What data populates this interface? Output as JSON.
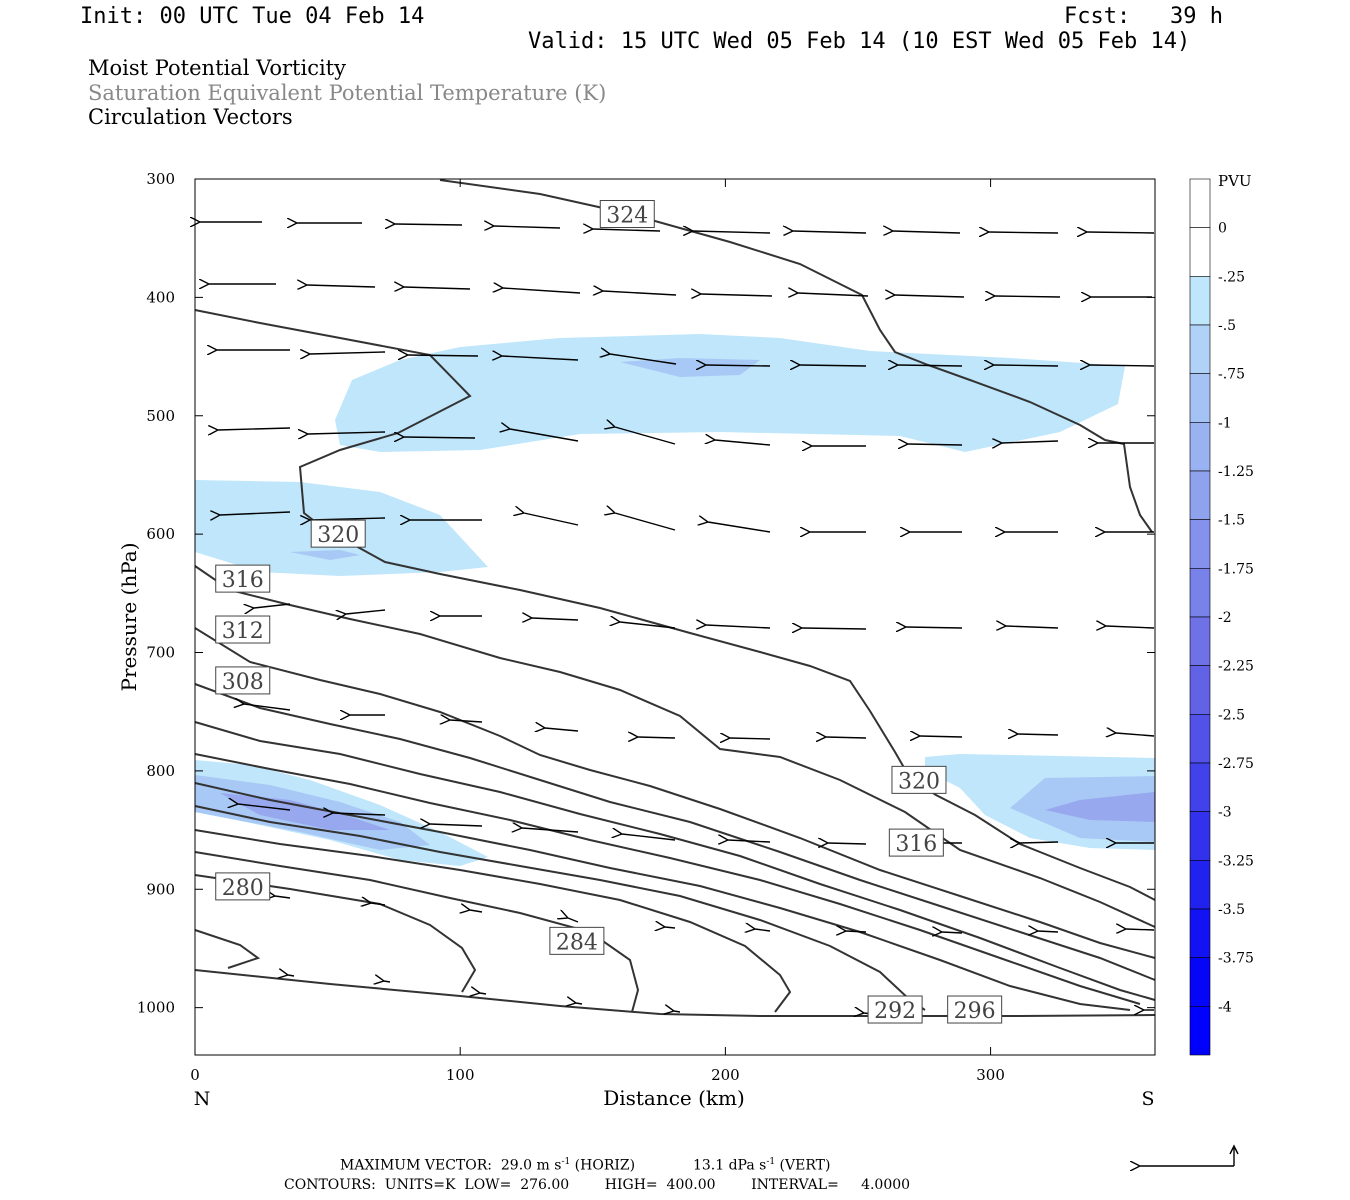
{
  "header": {
    "init": "Init: 00 UTC Tue 04 Feb 14",
    "fcst": "Fcst:   39 h",
    "valid": "Valid: 15 UTC Wed 05 Feb 14 (10 EST Wed 05 Feb 14)"
  },
  "fields": {
    "line1": "Moist Potential Vorticity",
    "line2": "Saturation Equivalent Potential Temperature (K)",
    "line3": "Circulation Vectors"
  },
  "colors": {
    "mpv_light": "#bfe6fb",
    "mpv_mid": "#a8c8f5",
    "mpv_dark": "#98a8ee",
    "contour": "#333333",
    "axis": "#000000"
  },
  "footer": {
    "max_vector_label": "MAXIMUM VECTOR:",
    "horiz_value": "29.0 m s",
    "horiz_exp": "-1",
    "horiz_label": "(HORIZ)",
    "vert_value": "13.1 dPa s",
    "vert_exp": "-1",
    "vert_label": "(VERT)",
    "contours": "CONTOURS:  UNITS=K  LOW=  276.00        HIGH=  400.00        INTERVAL=     4.0000"
  },
  "chart_data": {
    "type": "contour",
    "xlabel": "Distance (km)",
    "ylabel": "Pressure (hPa)",
    "xlim": [
      0,
      362
    ],
    "ylim": [
      1040,
      300
    ],
    "x_ticks": [
      0,
      100,
      200,
      300
    ],
    "y_ticks": [
      300,
      400,
      500,
      600,
      700,
      800,
      900,
      1000
    ],
    "x_end_labels": {
      "left": "N",
      "right": "S"
    },
    "colorbar": {
      "title": "PVU",
      "labels": [
        "0",
        "-.25",
        "-.5",
        "-.75",
        "-1",
        "-1.25",
        "-1.5",
        "-1.75",
        "-2",
        "-2.25",
        "-2.5",
        "-2.75",
        "-3",
        "-3.25",
        "-3.5",
        "-3.75",
        "-4"
      ],
      "colors": [
        "#ffffff",
        "#ffffff",
        "#bfe6fb",
        "#b0d2f7",
        "#a5c2f4",
        "#9ab2f1",
        "#8fa2ee",
        "#8492eb",
        "#7982e8",
        "#6e72e6",
        "#6262e6",
        "#5252e8",
        "#4242ea",
        "#3232ec",
        "#2222ee",
        "#1212f2",
        "#0505f8",
        "#0000ff"
      ]
    },
    "contour_labels": [
      {
        "text": "324",
        "x": 163,
        "p": 330
      },
      {
        "text": "320",
        "x": 54,
        "p": 600
      },
      {
        "text": "316",
        "x": 18,
        "p": 638
      },
      {
        "text": "312",
        "x": 18,
        "p": 681
      },
      {
        "text": "308",
        "x": 18,
        "p": 724
      },
      {
        "text": "320",
        "x": 273,
        "p": 808
      },
      {
        "text": "316",
        "x": 272,
        "p": 861
      },
      {
        "text": "280",
        "x": 18,
        "p": 898
      },
      {
        "text": "284",
        "x": 144,
        "p": 944
      },
      {
        "text": "292",
        "x": 264,
        "p": 1002
      },
      {
        "text": "296",
        "x": 294,
        "p": 1002
      }
    ]
  }
}
